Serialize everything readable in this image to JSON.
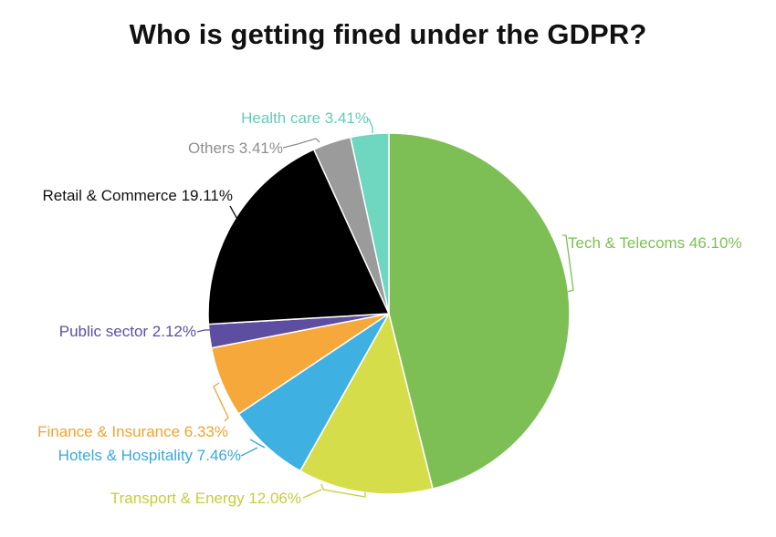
{
  "chart_data": {
    "type": "pie",
    "title": "Who is getting fined under the GDPR?",
    "slices": [
      {
        "label": "Tech & Telecoms 46.10%",
        "category": "Tech & Telecoms",
        "value": 46.1,
        "color": "#7dbf55",
        "label_color": "#7dbf55"
      },
      {
        "label": "Transport & Energy 12.06%",
        "category": "Transport & Energy",
        "value": 12.06,
        "color": "#d6dd4b",
        "label_color": "#c6cd3d"
      },
      {
        "label": "Hotels & Hospitality 7.46%",
        "category": "Hotels & Hospitality",
        "value": 7.46,
        "color": "#3fb0e2",
        "label_color": "#3aa8dc"
      },
      {
        "label": "Finance & Insurance 6.33%",
        "category": "Finance & Insurance",
        "value": 6.33,
        "color": "#f6a83a",
        "label_color": "#f2a233"
      },
      {
        "label": "Public sector 2.12%",
        "category": "Public sector",
        "value": 2.12,
        "color": "#5e4ea2",
        "label_color": "#5e4ea2"
      },
      {
        "label": "Retail & Commerce 19.11%",
        "category": "Retail & Commerce",
        "value": 19.11,
        "color": "#000000",
        "label_color": "#111111"
      },
      {
        "label": "Others 3.41%",
        "category": "Others",
        "value": 3.41,
        "color": "#9b9b9b",
        "label_color": "#8f8f8f"
      },
      {
        "label": "Health care 3.41%",
        "category": "Health care",
        "value": 3.41,
        "color": "#6fd6c0",
        "label_color": "#63ccb8"
      }
    ]
  }
}
